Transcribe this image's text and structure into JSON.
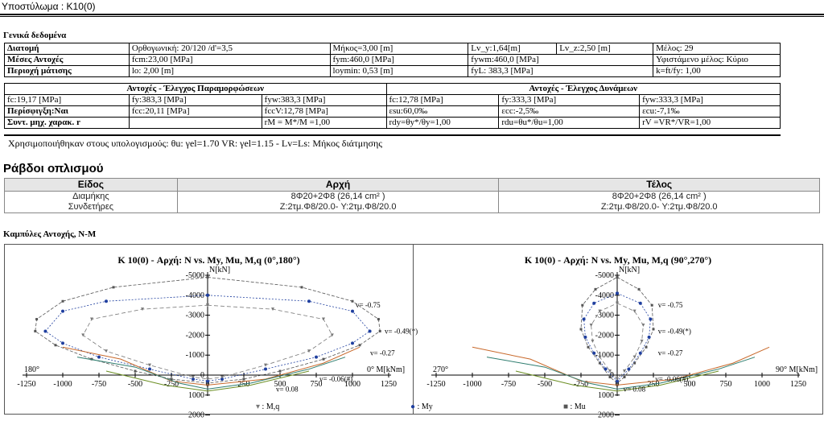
{
  "header": {
    "title": "Υποστύλωμα : K10(0)"
  },
  "general": {
    "section_title": "Γενικά δεδομένα",
    "rows": [
      [
        "Διατομή",
        "Ορθογωνική: 20/120 /d'=3,5",
        "Μήκος=3,00 [m]",
        "Lv_y:1,64[m]",
        "Lv_z:2,50 [m]",
        "Μέλος: 29"
      ],
      [
        "Μέσες Αντοχές",
        "fcm:23,00 [MPa]",
        "fym:460,0 [MPa]",
        "fywm:460,0 [MPa]",
        "Υφιστάμενο μέλος: Κύριο"
      ],
      [
        "Περιοχή μάτισης",
        "lo: 2,00 [m]",
        "loymin: 0,53 [m]",
        "fyL: 383,3 [MPa]",
        "k=ft/fy: 1,00"
      ]
    ],
    "sub_left": "Αντοχές - Έλεγχος Παραμορφώσεων",
    "sub_right": "Αντοχές - Έλεγχος Δυνάμεων",
    "rows2": [
      [
        "fc:19,17 [MPa]",
        "fy:383,3 [MPa]",
        "fyw:383,3 [MPa]",
        "fc:12,78 [MPa]",
        "fy:333,3 [MPa]",
        "fyw:333,3 [MPa]"
      ],
      [
        "Περίσφιγξη:Ναι",
        "fcc:20,11 [MPa]",
        "fccV:12,78 [MPa]",
        "εsu:60,0‰",
        "εcc:-2,5‰",
        "εcu:-7,1‰"
      ],
      [
        "Συντ. μηχ. χαρακ. r",
        "",
        "rM = M*/M =1,00",
        "rdy=θy*/θy=1,00",
        "rdu=θu*/θu=1,00",
        "rV =VR*/VR=1,00"
      ]
    ],
    "note": "Χρησιμοποιήθηκαν στους υπολογισμούς: θu: γel=1.70 VR: γel=1.15 - Lv=Ls: Μήκος διάτμησης"
  },
  "rebars": {
    "title": "Ράβδοι οπλισμού",
    "headers": [
      "Είδος",
      "Αρχή",
      "Τέλος"
    ],
    "rows": [
      [
        "Διαμήκης",
        "8Φ20+2Φ8 (26,14 cm² )",
        "8Φ20+2Φ8 (26,14 cm² )"
      ],
      [
        "Συνδετήρες",
        "Z:2τμ.Φ8/20.0- Y:2τμ.Φ8/20.0",
        "Z:2τμ.Φ8/20.0- Y:2τμ.Φ8/20.0"
      ]
    ]
  },
  "curves": {
    "section_title": "Καμπύλες Αντοχής, N-M",
    "legend": [
      "M,q",
      "My",
      "Mu"
    ]
  },
  "colors": {
    "my": "#1f3f9f",
    "mu": "#555555",
    "mq": "#777777",
    "curve_a": "#2e7d6f",
    "curve_b": "#c8682a",
    "curve_c": "#6b8e23"
  },
  "chart_data": [
    {
      "type": "line",
      "title": "K 10(0) - Αρχή: N vs. My, Mu, M,q (0°,180°)",
      "xlabel": "M[kNm]",
      "ylabel": "N[kN]",
      "left_label": "180°",
      "right_label": "0°",
      "xlim": [
        -1250,
        1250
      ],
      "ylim": [
        -5000,
        2000
      ],
      "xticks": [
        -1250,
        -1000,
        -750,
        -500,
        -250,
        0,
        250,
        500,
        750,
        1000,
        1250
      ],
      "yticks": [
        -5000,
        -4000,
        -3000,
        -2000,
        -1000,
        0,
        1000,
        2000
      ],
      "annotations": [
        "v= -0.75",
        "v= -0.49(*)",
        "v= -0.27",
        "v= -0.06(#)",
        "v= 0.08"
      ],
      "series": [
        {
          "name": "Mu",
          "x": [
            0,
            650,
            1000,
            1180,
            1190,
            1050,
            800,
            500,
            250,
            0,
            -250,
            -500,
            -800,
            -1050,
            -1190,
            -1180,
            -1000,
            -650,
            0
          ],
          "y": [
            -4900,
            -4400,
            -3700,
            -2800,
            -2200,
            -1500,
            -800,
            -200,
            200,
            400,
            200,
            -200,
            -800,
            -1500,
            -2200,
            -2800,
            -3700,
            -4400,
            -4900
          ]
        },
        {
          "name": "My",
          "x": [
            0,
            700,
            1000,
            1120,
            1000,
            750,
            400,
            100,
            0,
            -100,
            -400,
            -750,
            -1000,
            -1120,
            -1000,
            -700,
            0
          ],
          "y": [
            -4000,
            -3700,
            -3200,
            -2200,
            -1600,
            -900,
            -300,
            200,
            300,
            200,
            -300,
            -900,
            -1600,
            -2200,
            -3200,
            -3700,
            -4000
          ]
        },
        {
          "name": "M,q",
          "x": [
            0,
            450,
            800,
            860,
            700,
            400,
            100,
            0,
            -100,
            -400,
            -700,
            -860,
            -800,
            -450,
            0
          ],
          "y": [
            -3500,
            -3300,
            -2800,
            -2000,
            -1200,
            -500,
            100,
            200,
            100,
            -500,
            -1200,
            -2000,
            -2800,
            -3300,
            -3500
          ]
        }
      ]
    },
    {
      "type": "line",
      "title": "K 10(0) - Αρχή: N vs. My, Mu, M,q (90°,270°)",
      "xlabel": "M[kNm]",
      "ylabel": "N[kN]",
      "left_label": "270°",
      "right_label": "90°",
      "xlim": [
        -1250,
        1250
      ],
      "ylim": [
        -5000,
        2000
      ],
      "xticks": [
        -1250,
        -1000,
        -750,
        -500,
        -250,
        0,
        250,
        500,
        750,
        1000,
        1250
      ],
      "yticks": [
        -5000,
        -4000,
        -3000,
        -2000,
        -1000,
        0,
        1000,
        2000
      ],
      "annotations": [
        "v= -0.75",
        "v= -0.49(*)",
        "v= -0.27",
        "v= -0.06(#)",
        "v= 0.08"
      ],
      "series": [
        {
          "name": "Mu",
          "x": [
            0,
            150,
            240,
            250,
            200,
            120,
            50,
            0,
            -50,
            -120,
            -200,
            -250,
            -240,
            -150,
            0
          ],
          "y": [
            -4900,
            -4300,
            -3500,
            -2300,
            -1400,
            -600,
            100,
            400,
            100,
            -600,
            -1400,
            -2300,
            -3500,
            -4300,
            -4900
          ]
        },
        {
          "name": "My",
          "x": [
            0,
            160,
            230,
            220,
            160,
            80,
            0,
            -80,
            -160,
            -220,
            -230,
            -160,
            0
          ],
          "y": [
            -4100,
            -3600,
            -2800,
            -1900,
            -1100,
            -300,
            300,
            -300,
            -1100,
            -1900,
            -2800,
            -3600,
            -4100
          ]
        },
        {
          "name": "M,q",
          "x": [
            0,
            120,
            180,
            170,
            120,
            50,
            0,
            -50,
            -120,
            -170,
            -180,
            -120,
            0
          ],
          "y": [
            -3600,
            -3200,
            -2500,
            -1700,
            -900,
            -200,
            200,
            -200,
            -900,
            -1700,
            -2500,
            -3200,
            -3600
          ]
        }
      ]
    }
  ]
}
